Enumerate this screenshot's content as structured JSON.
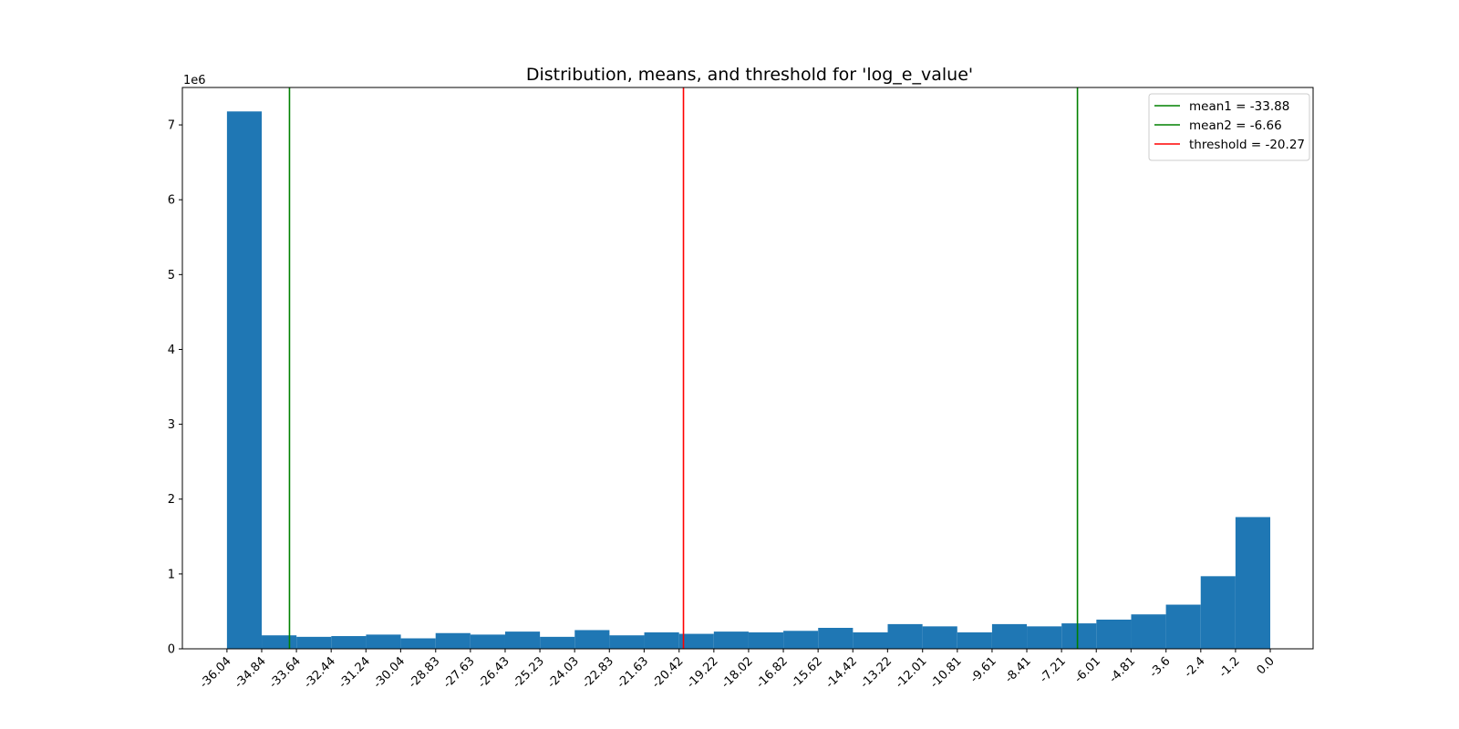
{
  "chart_data": {
    "type": "bar",
    "title": "Distribution, means, and threshold for 'log_e_value'",
    "y_offset_label": "1e6",
    "ylim": [
      0,
      7.5
    ],
    "y_ticks": [
      0,
      1,
      2,
      3,
      4,
      5,
      6,
      7
    ],
    "x_ticks": [
      "-36.04",
      "-34.84",
      "-33.64",
      "-32.44",
      "-31.24",
      "-30.04",
      "-28.83",
      "-27.63",
      "-26.43",
      "-25.23",
      "-24.03",
      "-22.83",
      "-21.63",
      "-20.42",
      "-19.22",
      "-18.02",
      "-16.82",
      "-15.62",
      "-14.42",
      "-13.22",
      "-12.01",
      "-10.81",
      "-9.61",
      "-8.41",
      "-7.21",
      "-6.01",
      "-4.81",
      "-3.6",
      "-2.4",
      "-1.2",
      "0.0"
    ],
    "x_range": [
      -36.04,
      0.0
    ],
    "xlim": [
      -37.58,
      1.48
    ],
    "bar_color": "#1f77b4",
    "values": [
      7.18,
      0.18,
      0.16,
      0.17,
      0.19,
      0.14,
      0.21,
      0.19,
      0.23,
      0.16,
      0.25,
      0.18,
      0.22,
      0.2,
      0.23,
      0.22,
      0.24,
      0.28,
      0.22,
      0.33,
      0.3,
      0.22,
      0.33,
      0.3,
      0.34,
      0.39,
      0.46,
      0.59,
      0.97,
      1.76
    ],
    "vlines": [
      {
        "label": "mean1 = -33.88",
        "x": -33.88,
        "color": "#008000"
      },
      {
        "label": "mean2 = -6.66",
        "x": -6.66,
        "color": "#008000"
      },
      {
        "label": "threshold = -20.27",
        "x": -20.27,
        "color": "#ff0000"
      }
    ],
    "legend_position": "top-right"
  }
}
